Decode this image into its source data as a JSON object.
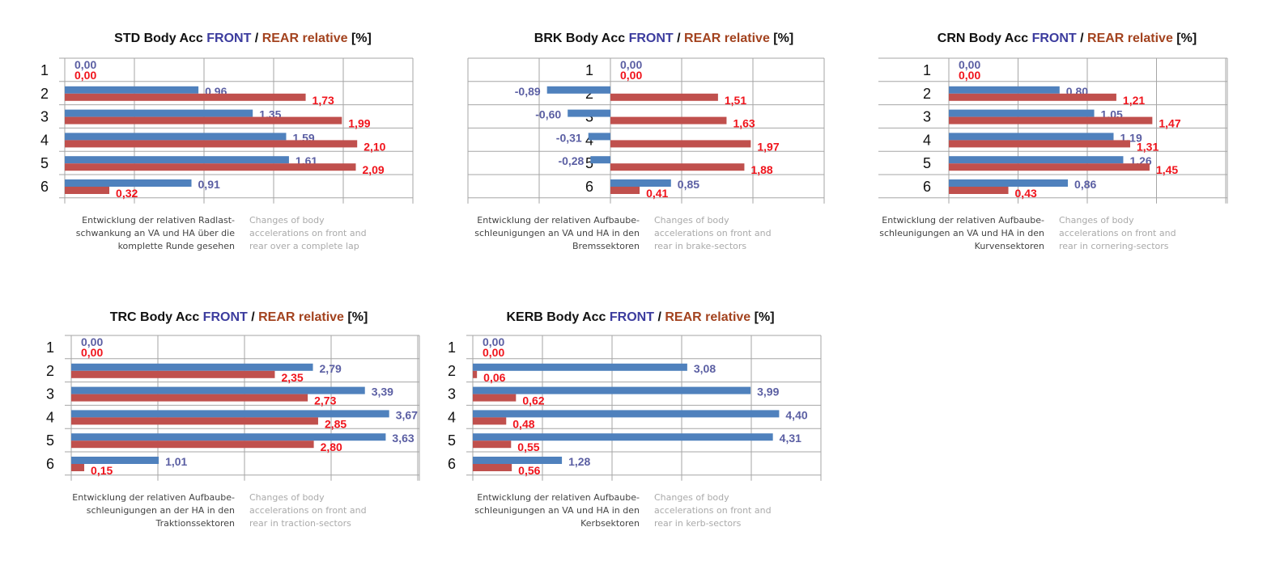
{
  "colors": {
    "front": "#4f81bd",
    "rear": "#c0504d",
    "front_title": "#3c3c9e",
    "rear_title": "#a3431f",
    "grid": "#a6a6a6"
  },
  "chart_data": [
    {
      "type": "bar",
      "orientation": "horizontal",
      "title": {
        "prefix": "STD Body Acc ",
        "front": "FRONT",
        "sep": " / ",
        "rear": "REAR",
        "relative": " relative ",
        "unit": "[%]"
      },
      "categories": [
        "1",
        "2",
        "3",
        "4",
        "5",
        "6"
      ],
      "series": [
        {
          "name": "FRONT",
          "values": [
            0.0,
            0.96,
            1.35,
            1.59,
            1.61,
            0.91
          ],
          "labels": [
            "0,00",
            "0,96",
            "1,35",
            "1,59",
            "1,61",
            "0,91"
          ]
        },
        {
          "name": "REAR",
          "values": [
            0.0,
            1.73,
            1.99,
            2.1,
            2.09,
            0.32
          ],
          "labels": [
            "0,00",
            "1,73",
            "1,99",
            "2,10",
            "2,09",
            "0,32"
          ]
        }
      ],
      "xlim": [
        0,
        2.5
      ],
      "grid": true,
      "caption_de": [
        "Entwicklung der relativen Radlast-",
        "schwankung an VA und HA über die",
        "komplette Runde gesehen"
      ],
      "caption_en": [
        "Changes of body",
        "accelerations on front and",
        "rear over a complete lap"
      ]
    },
    {
      "type": "bar",
      "orientation": "horizontal",
      "title": {
        "prefix": "BRK Body Acc ",
        "front": "FRONT",
        "sep": " / ",
        "rear": "REAR",
        "relative": " relative ",
        "unit": "[%]"
      },
      "categories": [
        "1",
        "2",
        "3",
        "4",
        "5",
        "6"
      ],
      "series": [
        {
          "name": "FRONT",
          "values": [
            0.0,
            -0.89,
            -0.6,
            -0.31,
            -0.28,
            0.85
          ],
          "labels": [
            "0,00",
            "-0,89",
            "-0,60",
            "-0,31",
            "-0,28",
            "0,85"
          ]
        },
        {
          "name": "REAR",
          "values": [
            0.0,
            1.51,
            1.63,
            1.97,
            1.88,
            0.41
          ],
          "labels": [
            "0,00",
            "1,51",
            "1,63",
            "1,97",
            "1,88",
            "0,41"
          ]
        }
      ],
      "xlim": [
        -2,
        3
      ],
      "grid": true,
      "caption_de": [
        "Entwicklung der relativen Aufbaube-",
        "schleunigungen an VA und HA in den",
        "Bremssektoren"
      ],
      "caption_en": [
        "Changes of body",
        "accelerations on front and",
        "rear in brake-sectors"
      ]
    },
    {
      "type": "bar",
      "orientation": "horizontal",
      "title": {
        "prefix": "CRN Body Acc ",
        "front": "FRONT",
        "sep": " / ",
        "rear": "REAR",
        "relative": " relative ",
        "unit": "[%]"
      },
      "categories": [
        "1",
        "2",
        "3",
        "4",
        "5",
        "6"
      ],
      "series": [
        {
          "name": "FRONT",
          "values": [
            0.0,
            0.8,
            1.05,
            1.19,
            1.26,
            0.86
          ],
          "labels": [
            "0,00",
            "0,80",
            "1,05",
            "1,19",
            "1,26",
            "0,86"
          ]
        },
        {
          "name": "REAR",
          "values": [
            0.0,
            1.21,
            1.47,
            1.31,
            1.45,
            0.43
          ],
          "labels": [
            "0,00",
            "1,21",
            "1,47",
            "1,31",
            "1,45",
            "0,43"
          ]
        }
      ],
      "xlim": [
        0,
        2.0
      ],
      "grid": true,
      "caption_de": [
        "Entwicklung der relativen Aufbaube-",
        "schleunigungen an VA und HA in den",
        "Kurvensektoren"
      ],
      "caption_en": [
        "Changes of body",
        "accelerations on front and",
        "rear in cornering-sectors"
      ]
    },
    {
      "type": "bar",
      "orientation": "horizontal",
      "title": {
        "prefix": "TRC Body Acc ",
        "front": "FRONT",
        "sep": " / ",
        "rear": "REAR",
        "relative": " relative ",
        "unit": "[%]"
      },
      "categories": [
        "1",
        "2",
        "3",
        "4",
        "5",
        "6"
      ],
      "series": [
        {
          "name": "FRONT",
          "values": [
            0.0,
            2.79,
            3.39,
            3.67,
            3.63,
            1.01
          ],
          "labels": [
            "0,00",
            "2,79",
            "3,39",
            "3,67",
            "3,63",
            "1,01"
          ]
        },
        {
          "name": "REAR",
          "values": [
            0.0,
            2.35,
            2.73,
            2.85,
            2.8,
            0.15
          ],
          "labels": [
            "0,00",
            "2,35",
            "2,73",
            "2,85",
            "2,80",
            "0,15"
          ]
        }
      ],
      "xlim": [
        0,
        4
      ],
      "grid": true,
      "caption_de": [
        "Entwicklung der relativen Aufbaube-",
        "schleunigungen an der HA in den",
        "Traktionssektoren"
      ],
      "caption_en": [
        "Changes of body",
        "accelerations on front and",
        "rear in traction-sectors"
      ]
    },
    {
      "type": "bar",
      "orientation": "horizontal",
      "title": {
        "prefix": "KERB Body Acc ",
        "front": "FRONT",
        "sep": " / ",
        "rear": "REAR",
        "relative": " relative ",
        "unit": "[%]"
      },
      "categories": [
        "1",
        "2",
        "3",
        "4",
        "5",
        "6"
      ],
      "series": [
        {
          "name": "FRONT",
          "values": [
            0.0,
            3.08,
            3.99,
            4.4,
            4.31,
            1.28
          ],
          "labels": [
            "0,00",
            "3,08",
            "3,99",
            "4,40",
            "4,31",
            "1,28"
          ]
        },
        {
          "name": "REAR",
          "values": [
            0.0,
            0.06,
            0.62,
            0.48,
            0.55,
            0.56
          ],
          "labels": [
            "0,00",
            "0,06",
            "0,62",
            "0,48",
            "0,55",
            "0,56"
          ]
        }
      ],
      "xlim": [
        0,
        5
      ],
      "grid": true,
      "caption_de": [
        "Entwicklung der relativen Aufbaube-",
        "schleunigungen an VA und HA in den",
        "Kerbsektoren"
      ],
      "caption_en": [
        "Changes of body",
        "accelerations on front and",
        "rear in kerb-sectors"
      ]
    }
  ]
}
